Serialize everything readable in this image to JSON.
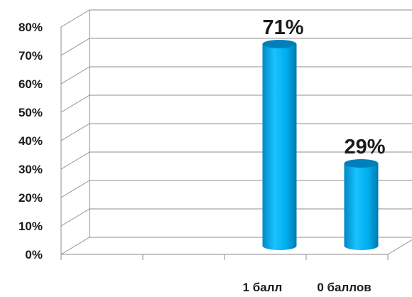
{
  "chart_data": {
    "type": "bar",
    "categories": [
      "",
      "",
      "1 балл",
      "0 баллов"
    ],
    "values": [
      0,
      0,
      71,
      29
    ],
    "value_labels": [
      "",
      "",
      "71%",
      "29%"
    ],
    "ylim": [
      0,
      80
    ],
    "y_ticks": [
      "0%",
      "10%",
      "20%",
      "30%",
      "40%",
      "50%",
      "60%",
      "70%",
      "80%"
    ],
    "grid": true,
    "style": "3d-cylinder",
    "bar_color": "#00b0f0"
  }
}
